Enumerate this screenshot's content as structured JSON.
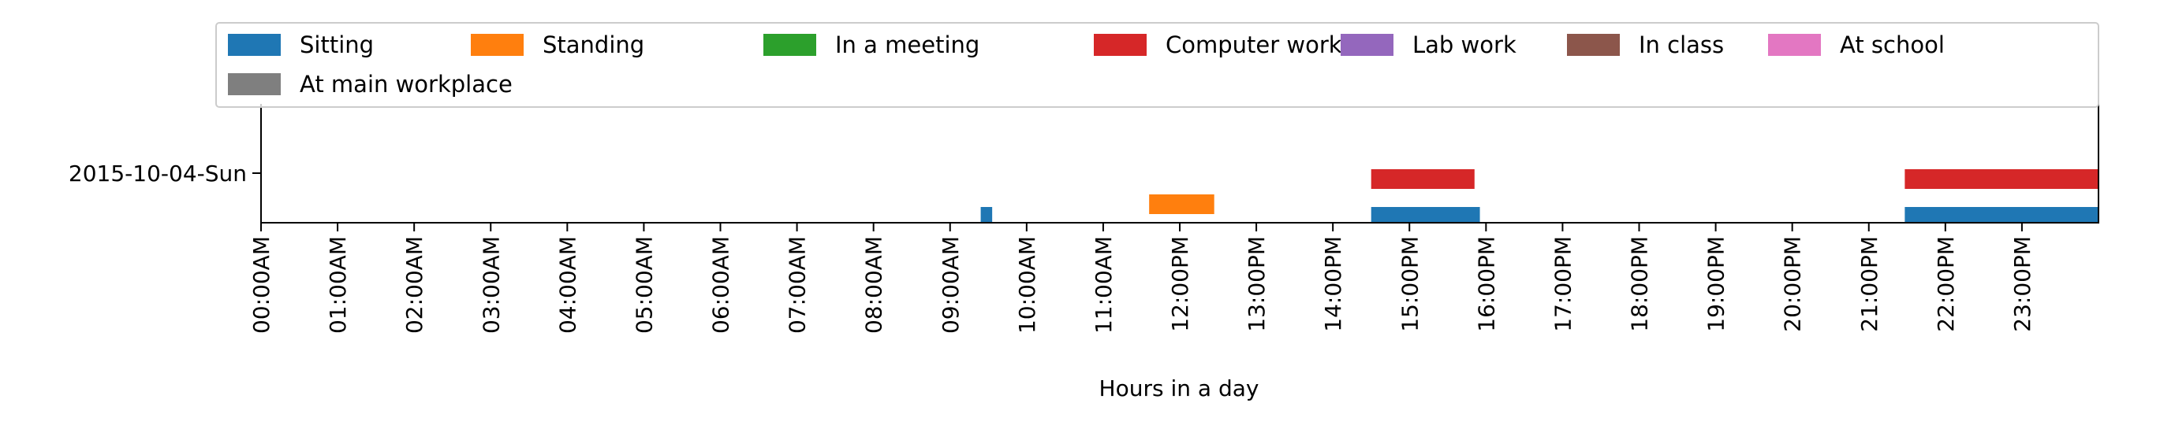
{
  "chart_data": {
    "type": "timeline",
    "title": "",
    "xlabel": "Hours in a day",
    "ylabel": "",
    "xlim": [
      0,
      24
    ],
    "y_categories": [
      "2015-10-04-Sun"
    ],
    "x_ticks": [
      {
        "value": 0,
        "label": "00:00AM"
      },
      {
        "value": 1,
        "label": "01:00AM"
      },
      {
        "value": 2,
        "label": "02:00AM"
      },
      {
        "value": 3,
        "label": "03:00AM"
      },
      {
        "value": 4,
        "label": "04:00AM"
      },
      {
        "value": 5,
        "label": "05:00AM"
      },
      {
        "value": 6,
        "label": "06:00AM"
      },
      {
        "value": 7,
        "label": "07:00AM"
      },
      {
        "value": 8,
        "label": "08:00AM"
      },
      {
        "value": 9,
        "label": "09:00AM"
      },
      {
        "value": 10,
        "label": "10:00AM"
      },
      {
        "value": 11,
        "label": "11:00AM"
      },
      {
        "value": 12,
        "label": "12:00PM"
      },
      {
        "value": 13,
        "label": "13:00PM"
      },
      {
        "value": 14,
        "label": "14:00PM"
      },
      {
        "value": 15,
        "label": "15:00PM"
      },
      {
        "value": 16,
        "label": "16:00PM"
      },
      {
        "value": 17,
        "label": "17:00PM"
      },
      {
        "value": 18,
        "label": "18:00PM"
      },
      {
        "value": 19,
        "label": "19:00PM"
      },
      {
        "value": 20,
        "label": "20:00PM"
      },
      {
        "value": 21,
        "label": "21:00PM"
      },
      {
        "value": 22,
        "label": "22:00PM"
      },
      {
        "value": 23,
        "label": "23:00PM"
      }
    ],
    "legend_position": "top",
    "series": [
      {
        "name": "Sitting",
        "color": "#1f77b4",
        "intervals": [
          [
            9.4,
            9.55
          ],
          [
            14.5,
            15.92
          ],
          [
            21.47,
            24.0
          ]
        ]
      },
      {
        "name": "Standing",
        "color": "#ff7f0e",
        "intervals": [
          [
            11.6,
            12.45
          ]
        ]
      },
      {
        "name": "In a meeting",
        "color": "#2ca02c",
        "intervals": []
      },
      {
        "name": "Computer work",
        "color": "#d62728",
        "intervals": [
          [
            14.5,
            15.85
          ],
          [
            21.47,
            24.0
          ]
        ]
      },
      {
        "name": "Lab work",
        "color": "#9467bd",
        "intervals": []
      },
      {
        "name": "In class",
        "color": "#8c564b",
        "intervals": []
      },
      {
        "name": "At school",
        "color": "#e377c2",
        "intervals": []
      },
      {
        "name": "At main workplace",
        "color": "#7f7f7f",
        "intervals": []
      }
    ]
  }
}
